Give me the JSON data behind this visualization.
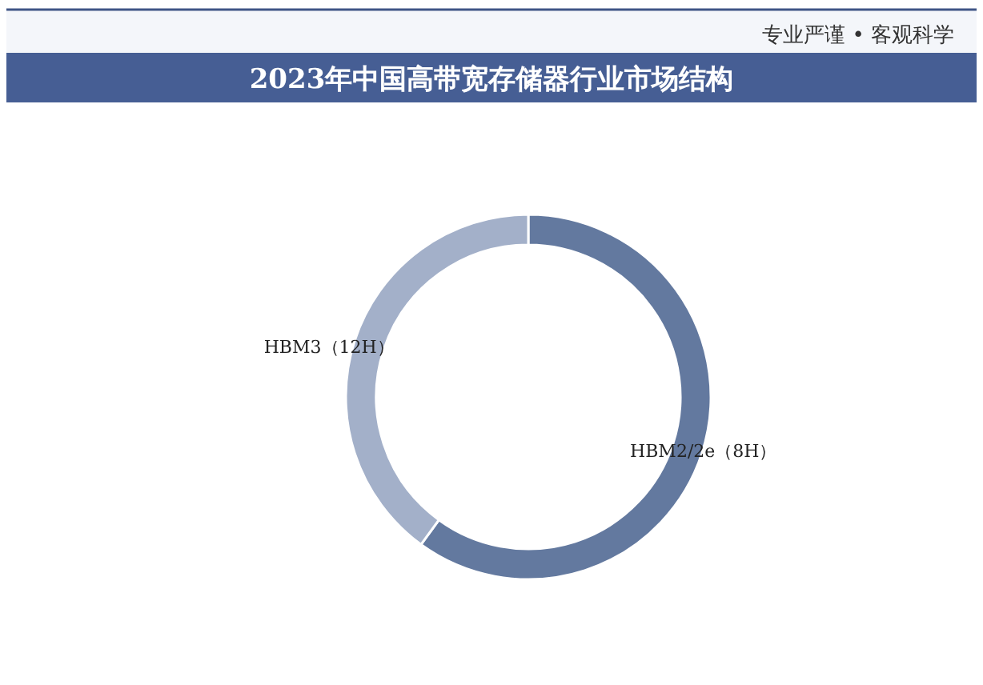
{
  "chart_data": {
    "type": "donut",
    "title": "2023年中国高带宽存储器行业市场结构",
    "categories": [
      "HBM2/2e（8H）",
      "HBM3（12H）"
    ],
    "values": [
      60,
      40
    ],
    "colors": [
      "#63799f",
      "#a3b0c9"
    ],
    "annotations": [
      "专业严谨 • 客观科学"
    ]
  }
}
